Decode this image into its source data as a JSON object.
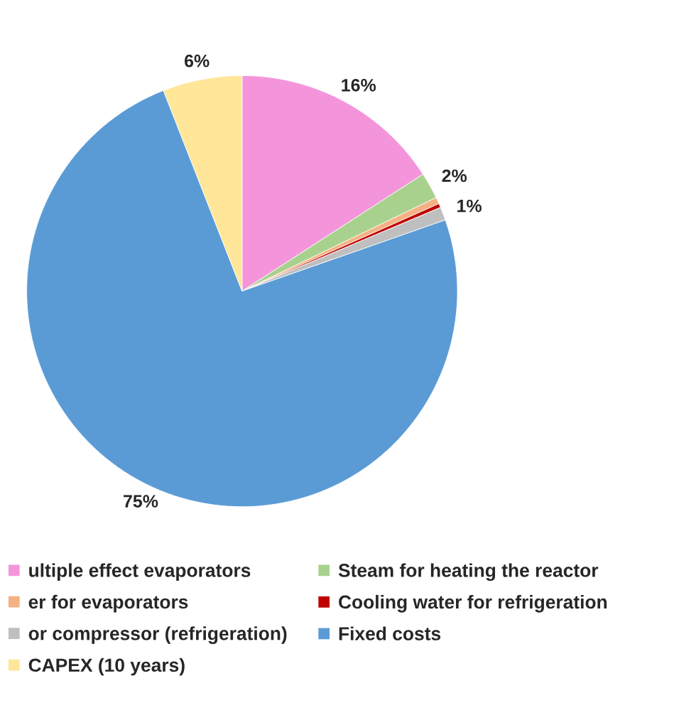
{
  "chart_data": {
    "type": "pie",
    "categories": [
      "ultiple effect evaporators",
      "Steam for heating the reactor",
      "er for evaporators",
      "Cooling water for refrigeration",
      "or compressor (refrigeration)",
      "Fixed costs",
      "CAPEX (10 years)"
    ],
    "values": [
      16,
      2,
      0.5,
      0.3,
      1,
      75,
      6
    ],
    "colors": [
      "#f495dc",
      "#a9d18e",
      "#f4b183",
      "#c00000",
      "#bfbfbf",
      "#5b9bd5",
      "#ffe699"
    ],
    "value_labels": [
      "16%",
      "2%",
      null,
      null,
      "1%",
      "75%",
      "6%"
    ],
    "legend": "bottom"
  }
}
